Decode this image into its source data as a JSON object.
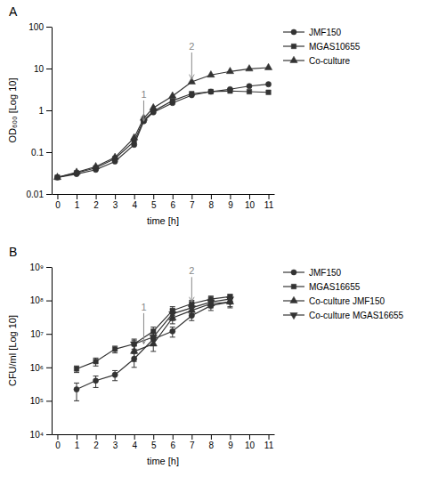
{
  "chart_data": [
    {
      "type": "line",
      "title": "A",
      "xlabel": "time [h]",
      "ylabel": "OD₆₀₀ [Log 10]",
      "log": "y",
      "grid": false,
      "legend": "right",
      "xlim": [
        -0.3,
        11.3
      ],
      "xticks": [
        0,
        1,
        2,
        3,
        4,
        5,
        6,
        7,
        8,
        9,
        10,
        11
      ],
      "ylim": [
        0.01,
        100
      ],
      "yticks": [
        0.01,
        0.1,
        1,
        10,
        100
      ],
      "series": [
        {
          "name": "JMF150",
          "color": "#333333",
          "marker": "circle",
          "x": [
            0,
            1,
            2,
            3,
            4,
            4.5,
            5,
            6,
            7,
            8,
            9,
            10,
            11
          ],
          "values": [
            0.025,
            0.03,
            0.038,
            0.06,
            0.15,
            0.55,
            0.9,
            1.5,
            2.3,
            2.8,
            3.2,
            3.8,
            4.2
          ]
        },
        {
          "name": "MGAS10655",
          "color": "#333333",
          "marker": "square",
          "x": [
            0,
            1,
            2,
            3,
            4,
            4.5,
            5,
            6,
            7,
            8,
            9,
            10,
            11
          ],
          "values": [
            0.025,
            0.032,
            0.042,
            0.07,
            0.18,
            0.58,
            0.95,
            1.7,
            2.5,
            2.8,
            2.9,
            2.8,
            2.7
          ]
        },
        {
          "name": "Co-culture",
          "color": "#333333",
          "marker": "triangle-up",
          "x": [
            0,
            1,
            2,
            3,
            4,
            4.5,
            5,
            6,
            7,
            8,
            9,
            10,
            11
          ],
          "values": [
            0.025,
            0.033,
            0.045,
            0.075,
            0.22,
            0.65,
            1.15,
            2.2,
            4.8,
            7.0,
            8.5,
            9.8,
            10.5
          ]
        }
      ],
      "annotations": [
        {
          "text": "1",
          "x": 4.5,
          "y": 0.55,
          "text_y": 2.0,
          "color": "#888888"
        },
        {
          "text": "2",
          "x": 7.0,
          "y": 5.5,
          "text_y": 28.0,
          "color": "#888888"
        }
      ]
    },
    {
      "type": "line",
      "title": "B",
      "xlabel": "time [h]",
      "ylabel": "CFU/ml [Log 10]",
      "log": "y",
      "grid": false,
      "legend": "right",
      "xlim": [
        -0.3,
        11.3
      ],
      "xticks": [
        0,
        1,
        2,
        3,
        4,
        5,
        6,
        7,
        8,
        9,
        10,
        11
      ],
      "ylim": [
        10000,
        1000000000
      ],
      "yticks": [
        {
          "value": 10000,
          "label": "10⁴"
        },
        {
          "value": 100000,
          "label": "10⁵"
        },
        {
          "value": 1000000,
          "label": "10⁶"
        },
        {
          "value": 10000000,
          "label": "10⁷"
        },
        {
          "value": 100000000,
          "label": "10⁸"
        },
        {
          "value": 1000000000,
          "label": "10⁹"
        }
      ],
      "series": [
        {
          "name": "JMF150",
          "color": "#333333",
          "marker": "circle",
          "x": [
            1,
            2,
            3,
            4,
            5,
            6,
            7,
            8,
            9
          ],
          "values": [
            220000.0,
            400000.0,
            600000.0,
            1800000.0,
            7000000.0,
            12000000.0,
            35000000.0,
            70000000.0,
            90000000.0
          ],
          "errors": [
            120000.0,
            150000.0,
            200000.0,
            800000.0,
            2500000.0,
            4000000.0,
            10000000.0,
            20000000.0,
            25000000.0
          ]
        },
        {
          "name": "MGAS16655",
          "color": "#333333",
          "marker": "square",
          "x": [
            1,
            2,
            3,
            4,
            5,
            6,
            7,
            8,
            9
          ],
          "values": [
            900000.0,
            1500000.0,
            3500000.0,
            5000000.0,
            12000000.0,
            50000000.0,
            80000000.0,
            110000000.0,
            130000000.0
          ],
          "errors": [
            200000.0,
            400000.0,
            800000.0,
            1500000.0,
            4000000.0,
            15000000.0,
            20000000.0,
            25000000.0,
            20000000.0
          ]
        },
        {
          "name": "Co-culture JMF150",
          "color": "#333333",
          "marker": "triangle-up",
          "x": [
            4,
            5,
            6,
            7,
            8,
            9
          ],
          "values": [
            3000000.0,
            5000000.0,
            30000000.0,
            50000000.0,
            80000000.0,
            90000000.0
          ],
          "errors": [
            1500000.0,
            2000000.0,
            10000000.0,
            15000000.0,
            20000000.0,
            30000000.0
          ]
        },
        {
          "name": "Co-culture MGAS16655",
          "color": "#333333",
          "marker": "triangle-down",
          "x": [
            4,
            5,
            6,
            7,
            8,
            9
          ],
          "values": [
            5000000.0,
            8000000.0,
            40000000.0,
            60000000.0,
            90000000.0,
            110000000.0
          ],
          "errors": [
            2000000.0,
            3000000.0,
            15000000.0,
            20000000.0,
            25000000.0,
            30000000.0
          ]
        }
      ],
      "annotations": [
        {
          "text": "1",
          "x": 4.5,
          "y": 5000000.0,
          "text_y": 50000000.0,
          "color": "#888888"
        },
        {
          "text": "2",
          "x": 7.0,
          "y": 90000000.0,
          "text_y": 600000000.0,
          "color": "#888888"
        }
      ]
    }
  ]
}
